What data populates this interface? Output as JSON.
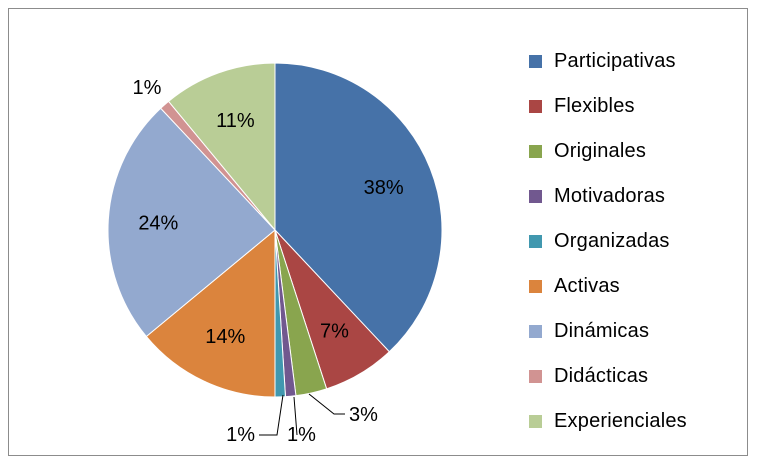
{
  "chart_data": {
    "type": "pie",
    "title": "",
    "legend_position": "right",
    "slices": [
      {
        "label": "Participativas",
        "value": 38,
        "display": "38%",
        "color": "#4672A8"
      },
      {
        "label": "Flexibles",
        "value": 7,
        "display": "7%",
        "color": "#AA4644"
      },
      {
        "label": "Originales",
        "value": 3,
        "display": "3%",
        "color": "#89A54E"
      },
      {
        "label": "Motivadoras",
        "value": 1,
        "display": "1%",
        "color": "#71588F"
      },
      {
        "label": "Organizadas",
        "value": 1,
        "display": "1%",
        "color": "#4198AF"
      },
      {
        "label": "Activas",
        "value": 14,
        "display": "14%",
        "color": "#DB843D"
      },
      {
        "label": "Dinámicas",
        "value": 24,
        "display": "24%",
        "color": "#93A9CF"
      },
      {
        "label": "Didácticas",
        "value": 1,
        "display": "1%",
        "color": "#D19392"
      },
      {
        "label": "Experienciales",
        "value": 11,
        "display": "11%",
        "color": "#B9CD96"
      }
    ]
  }
}
